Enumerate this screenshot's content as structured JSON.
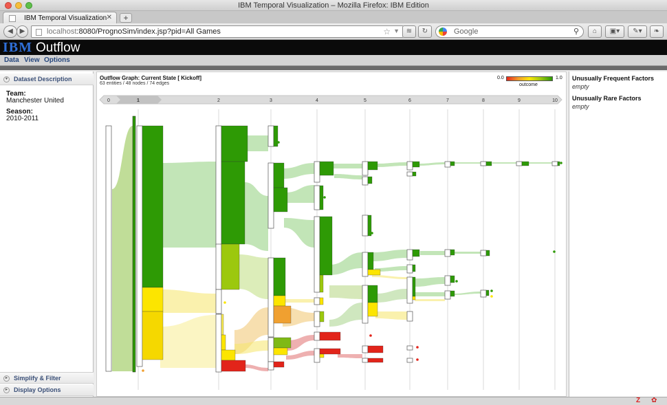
{
  "browser": {
    "window_title": "IBM Temporal Visualization – Mozilla Firefox: IBM Edition",
    "tab_title": "IBM Temporal Visualization",
    "url_host": "localhost",
    "url_rest": ":8080/PrognoSim/index.jsp?pid=All Games",
    "search_placeholder": "Google"
  },
  "app": {
    "logo": "IBM",
    "title": "Outflow",
    "menu": [
      "Data",
      "View",
      "Options"
    ]
  },
  "left_panel": {
    "dataset_header": "Dataset Description",
    "team_label": "Team:",
    "team_value": "Manchester United",
    "season_label": "Season:",
    "season_value": "2010-2011",
    "simplify_header": "Simplify & Filter",
    "display_header": "Display Options"
  },
  "graph": {
    "title": "Outflow Graph: Current State [ Kickoff]",
    "subtitle": "63 entities / 48 nodes / 74 edges",
    "legend_min": "0.0",
    "legend_max": "1.0",
    "legend_label": "outcome",
    "colors": {
      "red": "#e2241a",
      "orange": "#f0a030",
      "yellow": "#fce500",
      "lightgreen": "#9cc80e",
      "green": "#2e9a05"
    },
    "steps": [
      "0",
      "1",
      "2",
      "3",
      "4",
      "5",
      "6",
      "7",
      "8",
      "9",
      "10"
    ],
    "selected_step": "1"
  },
  "right_panel": {
    "frequent_title": "Unusually Frequent Factors",
    "frequent_value": "empty",
    "rare_title": "Unusually Rare Factors",
    "rare_value": "empty"
  }
}
